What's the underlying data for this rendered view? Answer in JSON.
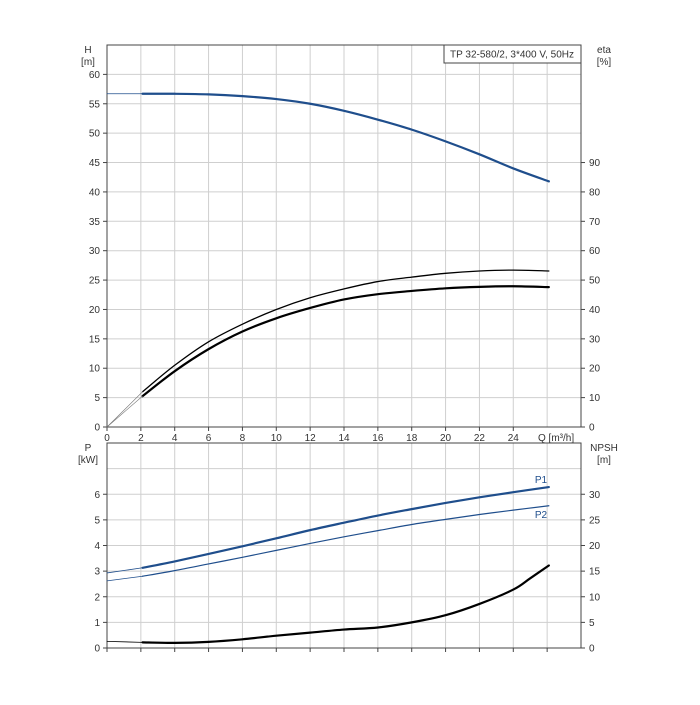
{
  "colors": {
    "blue": "#1f4e8c",
    "black": "#000000",
    "grid": "#cfcfcf"
  },
  "chart_data": [
    {
      "type": "line",
      "id": "upper",
      "title": "TP 32-580/2, 3*400 V, 50Hz",
      "xlabel": "Q [m³/h]",
      "ylabel_left": [
        "H",
        "[m]"
      ],
      "ylabel_right": [
        "eta",
        "[%]"
      ],
      "xlim": [
        0,
        28
      ],
      "ylim_left": [
        0,
        65
      ],
      "ylim_right": [
        0,
        130
      ],
      "xticks": [
        "0",
        "2",
        "4",
        "6",
        "8",
        "10",
        "12",
        "14",
        "16",
        "18",
        "20",
        "22",
        "24"
      ],
      "yticks_left": [
        "0",
        "5",
        "10",
        "15",
        "20",
        "25",
        "30",
        "35",
        "40",
        "45",
        "50",
        "55",
        "60"
      ],
      "yticks_right": [
        "0",
        "10",
        "20",
        "30",
        "40",
        "50",
        "60",
        "70",
        "80",
        "90"
      ],
      "grid": true,
      "series": [
        {
          "axis": "left",
          "color": "#1f4e8c",
          "width": 2.2,
          "x": [
            2.1,
            4,
            6,
            8,
            10,
            12,
            14,
            16,
            18,
            20,
            22,
            24,
            26.1
          ],
          "y": [
            56.7,
            56.7,
            56.6,
            56.3,
            55.8,
            55.0,
            53.8,
            52.3,
            50.6,
            48.6,
            46.4,
            44.0,
            41.8
          ]
        },
        {
          "axis": "left",
          "color": "#1f4e8c",
          "width": 0.8,
          "x": [
            0,
            2.1
          ],
          "y": [
            56.7,
            56.7
          ]
        },
        {
          "axis": "right",
          "color": "#000000",
          "width": 1.3,
          "x": [
            2.1,
            4,
            6,
            8,
            10,
            12,
            14,
            16,
            18,
            20,
            22,
            24,
            26.1
          ],
          "y": [
            12,
            21,
            29,
            35,
            40,
            44,
            47,
            49.5,
            51,
            52.3,
            53.1,
            53.4,
            53.1
          ]
        },
        {
          "axis": "right",
          "color": "#000000",
          "width": 2.2,
          "x": [
            2.1,
            4,
            6,
            8,
            10,
            12,
            14,
            16,
            18,
            20,
            22,
            24,
            26.1
          ],
          "y": [
            10.5,
            19,
            26.5,
            32.5,
            37,
            40.5,
            43.4,
            45.2,
            46.3,
            47.2,
            47.7,
            47.9,
            47.6
          ]
        },
        {
          "axis": "right",
          "color": "#777777",
          "width": 0.6,
          "x": [
            0,
            2.1
          ],
          "y": [
            0,
            12
          ]
        },
        {
          "axis": "right",
          "color": "#777777",
          "width": 0.6,
          "x": [
            0,
            2.1
          ],
          "y": [
            0,
            10.5
          ]
        }
      ]
    },
    {
      "type": "line",
      "id": "lower",
      "xlabel": "",
      "ylabel_left": [
        "P",
        "[kW]"
      ],
      "ylabel_right": [
        "NPSH",
        "[m]"
      ],
      "xlim": [
        0,
        28
      ],
      "ylim_left": [
        0,
        8
      ],
      "ylim_right": [
        0,
        40
      ],
      "yticks_left": [
        "0",
        "1",
        "2",
        "3",
        "4",
        "5",
        "6"
      ],
      "yticks_right": [
        "0",
        "5",
        "10",
        "15",
        "20",
        "25",
        "30"
      ],
      "grid": true,
      "series": [
        {
          "name": "P1",
          "axis": "left",
          "color": "#1f4e8c",
          "width": 2.2,
          "x": [
            2.1,
            4,
            6,
            8,
            10,
            12,
            14,
            16,
            18,
            20,
            22,
            24,
            26.1
          ],
          "y": [
            3.13,
            3.38,
            3.67,
            3.97,
            4.28,
            4.6,
            4.89,
            5.17,
            5.42,
            5.66,
            5.88,
            6.08,
            6.28
          ]
        },
        {
          "axis": "left",
          "color": "#1f4e8c",
          "width": 0.8,
          "x": [
            0,
            2.1
          ],
          "y": [
            2.93,
            3.13
          ]
        },
        {
          "name": "P2",
          "axis": "left",
          "color": "#1f4e8c",
          "width": 1.2,
          "x": [
            2.1,
            4,
            6,
            8,
            10,
            12,
            14,
            16,
            18,
            20,
            22,
            24,
            26.1
          ],
          "y": [
            2.8,
            3.02,
            3.28,
            3.54,
            3.81,
            4.08,
            4.34,
            4.58,
            4.82,
            5.02,
            5.21,
            5.38,
            5.55
          ]
        },
        {
          "axis": "left",
          "color": "#1f4e8c",
          "width": 0.8,
          "x": [
            0,
            2.1
          ],
          "y": [
            2.62,
            2.8
          ]
        },
        {
          "axis": "right",
          "color": "#000000",
          "width": 2.2,
          "x": [
            2.1,
            4,
            6,
            8,
            10,
            12,
            14,
            16,
            18,
            20,
            22,
            24,
            25,
            26.1
          ],
          "y": [
            1.1,
            1.0,
            1.2,
            1.7,
            2.4,
            3.0,
            3.6,
            4.0,
            5.0,
            6.4,
            8.6,
            11.4,
            13.6,
            16.1
          ]
        },
        {
          "axis": "right",
          "color": "#000000",
          "width": 0.8,
          "x": [
            0,
            2.1
          ],
          "y": [
            1.3,
            1.1
          ]
        }
      ]
    }
  ]
}
